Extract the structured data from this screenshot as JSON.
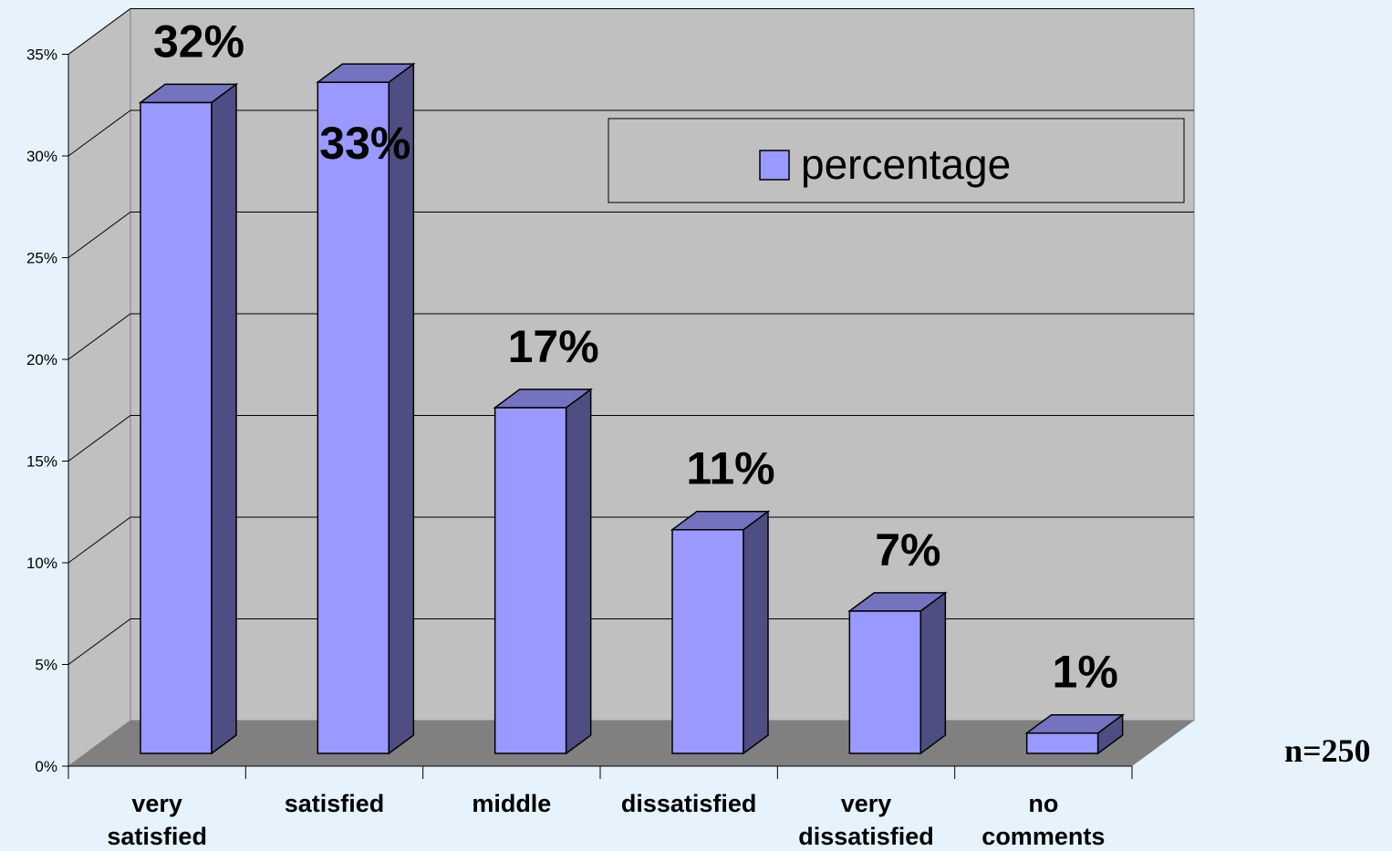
{
  "chart_data": {
    "type": "bar",
    "categories": [
      [
        "very",
        "satisfied"
      ],
      [
        "satisfied"
      ],
      [
        "middle"
      ],
      [
        "dissatisfied"
      ],
      [
        "very",
        "dissatisfied"
      ],
      [
        "no",
        "comments"
      ]
    ],
    "series": [
      {
        "name": "percentage",
        "values": [
          32,
          33,
          17,
          11,
          7,
          1
        ]
      }
    ],
    "data_labels": [
      "32%",
      "33%",
      "17%",
      "11%",
      "7%",
      "1%"
    ],
    "y_ticks": [
      "0%",
      "5%",
      "10%",
      "15%",
      "20%",
      "25%",
      "30%",
      "35%"
    ],
    "ylim": [
      0,
      35
    ],
    "grid": true,
    "legend_position": "top-right",
    "three_d": true,
    "colors": {
      "bar_front": "#9999ff",
      "bar_side": "#4e4e83",
      "bar_top": "#7373bf",
      "wall": "#c0c0c0",
      "floor": "#808080",
      "background": "#e6f3fd"
    }
  },
  "annotation": "n=250"
}
